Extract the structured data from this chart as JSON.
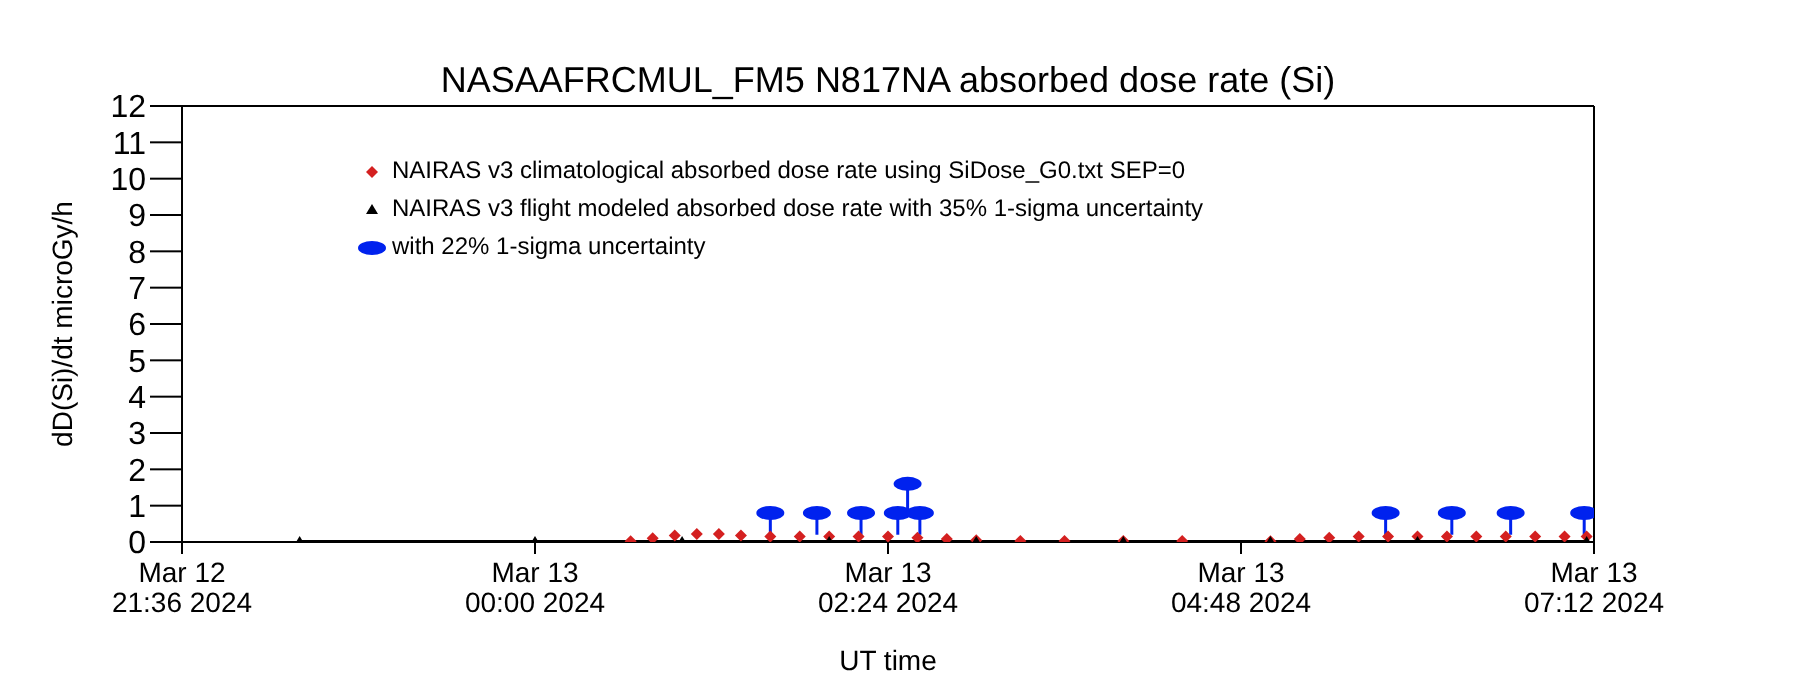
{
  "chart_data": {
    "type": "scatter",
    "title": "NASAAFRCMUL_FM5   N817NA absorbed dose rate (Si)",
    "xlabel": "UT time",
    "ylabel": "dD(Si)/dt microGy/h",
    "xlim": [
      "2024-03-12T21:36",
      "2024-03-13T07:12"
    ],
    "xticks": [
      {
        "value": "2024-03-12T21:36",
        "label": "Mar 12\n21:36 2024"
      },
      {
        "value": "2024-03-13T00:00",
        "label": "Mar 13\n00:00 2024"
      },
      {
        "value": "2024-03-13T02:24",
        "label": "Mar 13\n02:24 2024"
      },
      {
        "value": "2024-03-13T04:48",
        "label": "Mar 13\n04:48 2024"
      },
      {
        "value": "2024-03-13T07:12",
        "label": "Mar 13\n07:12 2024"
      }
    ],
    "ylim": [
      0,
      12
    ],
    "yticks": [
      0,
      1,
      2,
      3,
      4,
      5,
      6,
      7,
      8,
      9,
      10,
      11,
      12
    ],
    "legend": "top left",
    "series": [
      {
        "name": "NAIRAS v3 climatological absorbed dose rate using SiDose_G0.txt SEP=0",
        "marker": "diamond",
        "color": "#d42020",
        "x": [
          "2024-03-13T00:39",
          "2024-03-13T00:48",
          "2024-03-13T00:57",
          "2024-03-13T01:06",
          "2024-03-13T01:15",
          "2024-03-13T01:24",
          "2024-03-13T01:36",
          "2024-03-13T01:48",
          "2024-03-13T02:00",
          "2024-03-13T02:12",
          "2024-03-13T02:24",
          "2024-03-13T02:36",
          "2024-03-13T02:48",
          "2024-03-13T03:00",
          "2024-03-13T03:18",
          "2024-03-13T03:36",
          "2024-03-13T04:00",
          "2024-03-13T04:24",
          "2024-03-13T05:00",
          "2024-03-13T05:12",
          "2024-03-13T05:24",
          "2024-03-13T05:36",
          "2024-03-13T05:48",
          "2024-03-13T06:00",
          "2024-03-13T06:12",
          "2024-03-13T06:24",
          "2024-03-13T06:36",
          "2024-03-13T06:48",
          "2024-03-13T07:00",
          "2024-03-13T07:09"
        ],
        "values": [
          0.02,
          0.1,
          0.18,
          0.22,
          0.22,
          0.18,
          0.15,
          0.15,
          0.15,
          0.15,
          0.15,
          0.12,
          0.08,
          0.05,
          0.03,
          0.03,
          0.03,
          0.03,
          0.02,
          0.08,
          0.12,
          0.15,
          0.15,
          0.15,
          0.15,
          0.15,
          0.15,
          0.15,
          0.15,
          0.15
        ]
      },
      {
        "name": "NAIRAS v3 flight modeled absorbed dose rate with 35% 1-sigma uncertainty",
        "type": "line",
        "marker": "triangle",
        "color": "#000000",
        "x": [
          "2024-03-12T22:24",
          "2024-03-13T00:00",
          "2024-03-13T01:00",
          "2024-03-13T02:00",
          "2024-03-13T03:00",
          "2024-03-13T04:00",
          "2024-03-13T05:00",
          "2024-03-13T06:00",
          "2024-03-13T07:09"
        ],
        "values": [
          0,
          0,
          0,
          0,
          0,
          0,
          0,
          0,
          0
        ]
      },
      {
        "name": "with 22% 1-sigma uncertainty",
        "marker": "circle",
        "color": "#0022ee",
        "x": [
          "2024-03-13T01:36",
          "2024-03-13T01:55",
          "2024-03-13T02:13",
          "2024-03-13T02:28",
          "2024-03-13T02:32",
          "2024-03-13T02:37",
          "2024-03-13T05:47",
          "2024-03-13T06:14",
          "2024-03-13T06:38",
          "2024-03-13T07:08"
        ],
        "values": [
          0.8,
          0.8,
          0.8,
          0.8,
          1.6,
          0.8,
          0.8,
          0.8,
          0.8,
          0.8
        ],
        "errors": [
          [
            0.2,
            0.8
          ],
          [
            0.2,
            0.8
          ],
          [
            0.2,
            0.8
          ],
          [
            0.2,
            0.8
          ],
          [
            0.8,
            1.6
          ],
          [
            0.2,
            0.8
          ],
          [
            0.2,
            0.8
          ],
          [
            0.2,
            0.8
          ],
          [
            0.2,
            0.8
          ],
          [
            0.2,
            0.8
          ]
        ]
      }
    ]
  }
}
